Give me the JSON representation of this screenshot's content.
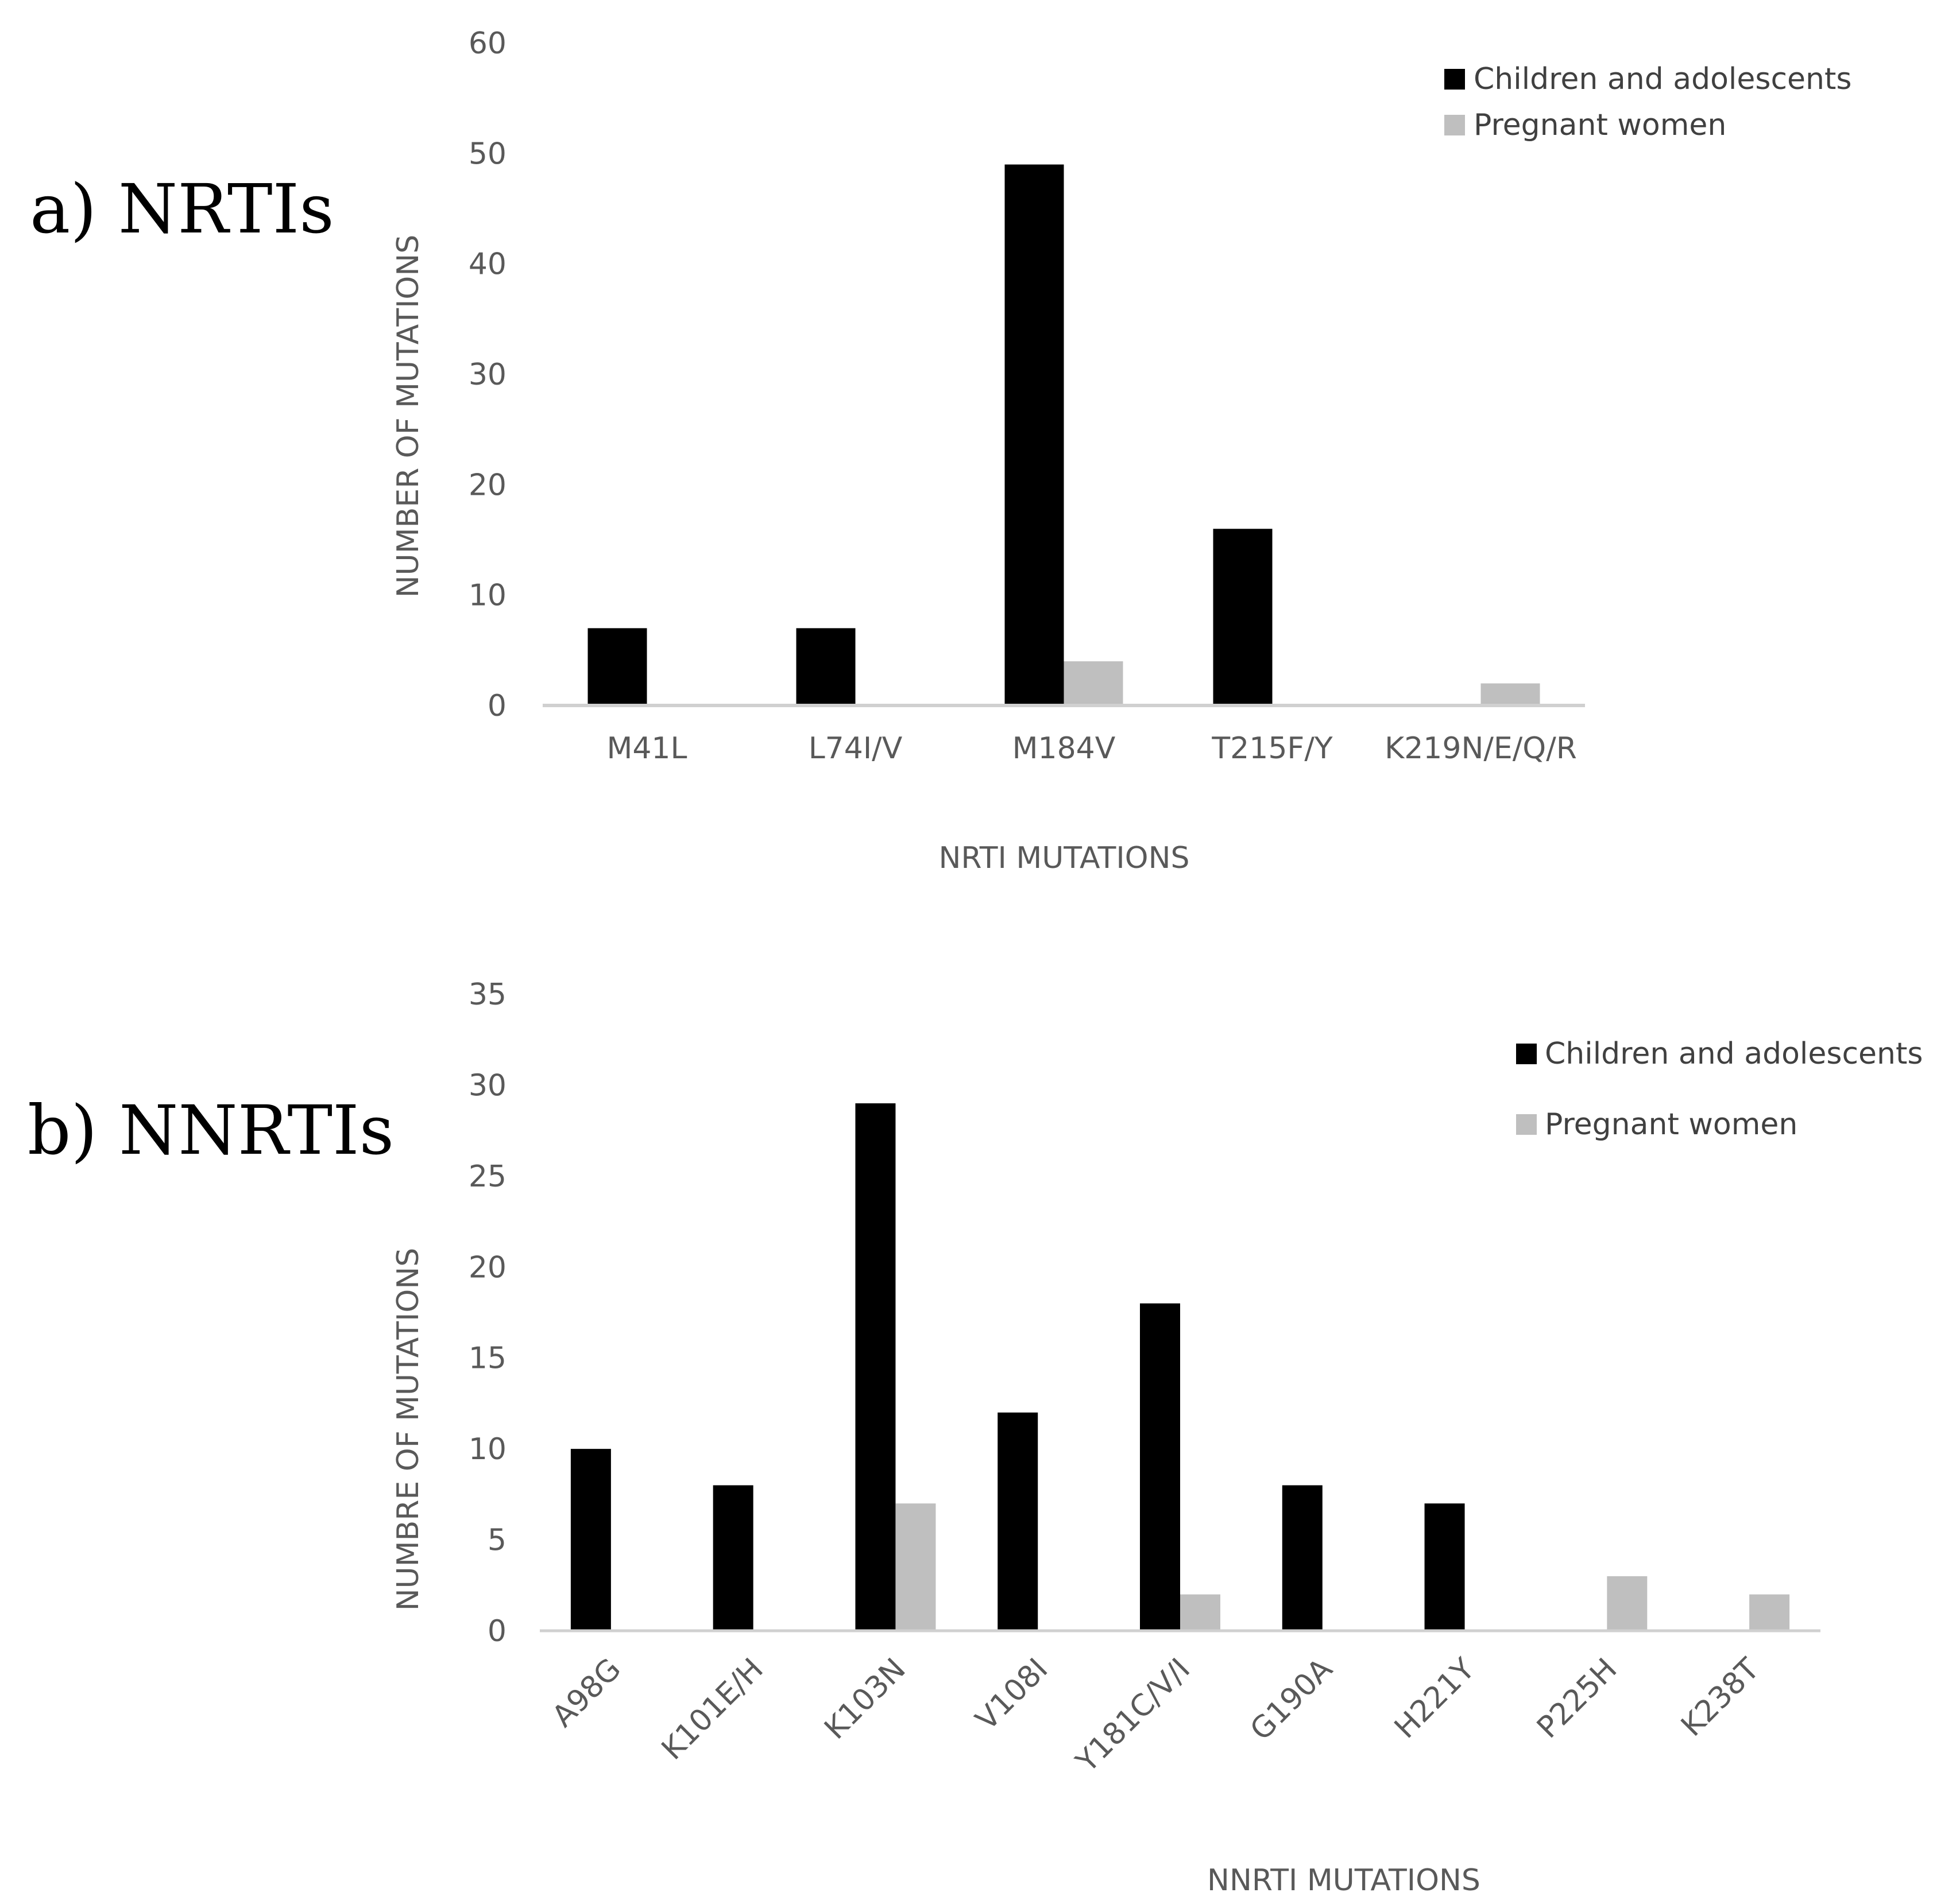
{
  "figure": {
    "panels": [
      {
        "label": "a) NRTIs"
      },
      {
        "label": "b) NNRTIs"
      }
    ]
  },
  "colors": {
    "children": "#000000",
    "pregnant": "#bfbfbf",
    "axis": "#d0d0d0",
    "text": "#595959"
  },
  "chart_data": [
    {
      "type": "bar",
      "title": "a) NRTIs",
      "xlabel": "NRTI MUTATIONS",
      "ylabel": "NUMBER OF MUTATIONS",
      "ylim": [
        0,
        60
      ],
      "yticks": [
        0,
        10,
        20,
        30,
        40,
        50,
        60
      ],
      "categories": [
        "M41L",
        "L74I/V",
        "M184V",
        "T215F/Y",
        "K219N/E/Q/R"
      ],
      "series": [
        {
          "name": "Children and adolescents",
          "values": [
            7,
            7,
            49,
            16,
            0
          ]
        },
        {
          "name": "Pregnant women",
          "values": [
            0,
            0,
            4,
            0,
            2
          ]
        }
      ],
      "legend": "top-right",
      "grid": false
    },
    {
      "type": "bar",
      "title": "b) NNRTIs",
      "xlabel": "NNRTI MUTATIONS",
      "ylabel": "NUMBRE OF MUTATIONS",
      "ylim": [
        0,
        35
      ],
      "yticks": [
        0,
        5,
        10,
        15,
        20,
        25,
        30,
        35
      ],
      "categories": [
        "A98G",
        "K101E/H",
        "K103N",
        "V108I",
        "Y181C/V/I",
        "G190A",
        "H221Y",
        "P225H",
        "K238T"
      ],
      "series": [
        {
          "name": "Children and adolescents",
          "values": [
            10,
            8,
            29,
            12,
            18,
            8,
            7,
            0,
            0
          ]
        },
        {
          "name": "Pregnant women",
          "values": [
            0,
            0,
            7,
            0,
            2,
            0,
            0,
            3,
            2
          ]
        }
      ],
      "legend": "top-right",
      "grid": false
    }
  ]
}
